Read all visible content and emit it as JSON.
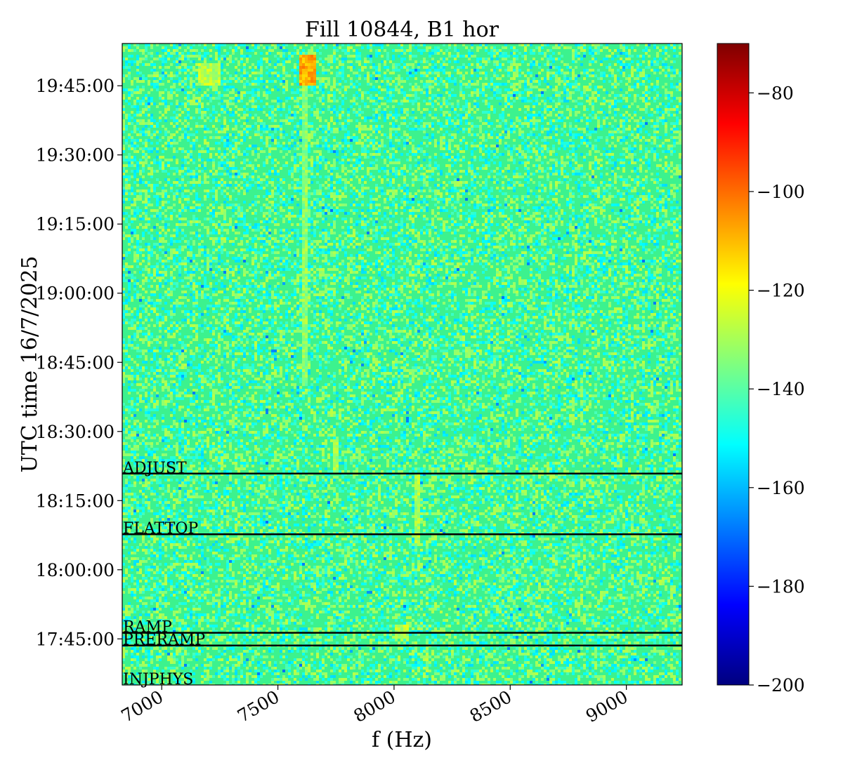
{
  "chart_data": {
    "type": "heatmap",
    "title": "Fill 10844, B1 hor",
    "xlabel": "f (Hz)",
    "ylabel": "UTC time 16/7/2025",
    "xlim": [
      6830,
      9240
    ],
    "x_ticks": [
      7000,
      7500,
      8000,
      8500,
      9000
    ],
    "x_tick_labels": [
      "7000",
      "7500",
      "8000",
      "8500",
      "9000"
    ],
    "ylim": [
      "17:35:00",
      "19:54:10"
    ],
    "y_ticks": [
      "17:45:00",
      "18:00:00",
      "18:15:00",
      "18:30:00",
      "18:45:00",
      "19:00:00",
      "19:15:00",
      "19:30:00",
      "19:45:00"
    ],
    "colorbar": {
      "colormap": "jet",
      "range": [
        -200,
        -70
      ],
      "ticks": [
        -80,
        -100,
        -120,
        -140,
        -160,
        -180,
        -200
      ],
      "tick_labels": [
        "−80",
        "−100",
        "−120",
        "−140",
        "−160",
        "−180",
        "−200"
      ]
    },
    "background_level": -138,
    "hotspots": [
      {
        "f_range": [
          7590,
          7670
        ],
        "t_range": [
          "19:45:00",
          "19:52:00"
        ],
        "level": -108
      },
      {
        "f_range": [
          7160,
          7250
        ],
        "t_range": [
          "19:45:00",
          "19:50:00"
        ],
        "level": -128
      },
      {
        "f_range": [
          8000,
          8060
        ],
        "t_range": [
          "17:45:00",
          "17:48:00"
        ],
        "level": -128
      }
    ],
    "faint_lines": [
      {
        "f": 7615,
        "t_range": [
          "18:40:00",
          "19:45:00"
        ],
        "level": -133
      },
      {
        "f": 7750,
        "t_range": [
          "18:21:00",
          "18:28:00"
        ],
        "level": -130
      },
      {
        "f": 8100,
        "t_range": [
          "18:05:00",
          "18:21:00"
        ],
        "level": -130
      },
      {
        "f": 8140,
        "t_range": [
          "17:38:00",
          "17:45:00"
        ],
        "level": -132
      }
    ],
    "annotations": [
      {
        "label": "ADJUST",
        "time": "18:20:52"
      },
      {
        "label": "FLATTOP",
        "time": "18:07:42"
      },
      {
        "label": "RAMP",
        "time": "17:46:20"
      },
      {
        "label": "PRERAMP",
        "time": "17:43:34"
      },
      {
        "label": "INJPHYS",
        "time": "17:35:00"
      }
    ]
  }
}
